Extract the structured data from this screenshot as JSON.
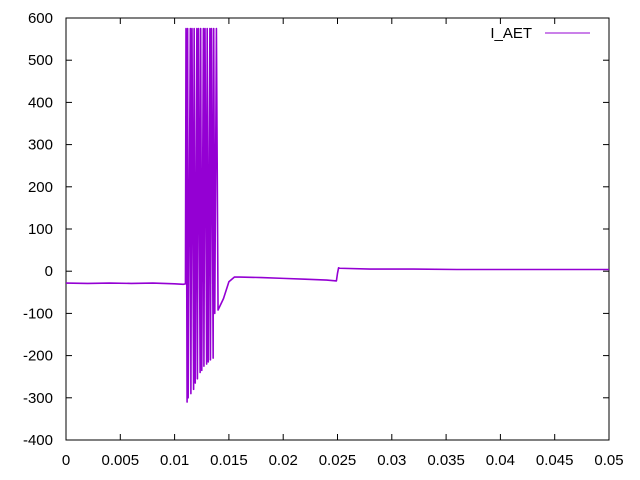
{
  "chart_data": {
    "type": "line",
    "title": "",
    "xlabel": "",
    "ylabel": "",
    "xlim": [
      0,
      0.05
    ],
    "ylim": [
      -400,
      600
    ],
    "xticks": [
      0,
      0.005,
      0.01,
      0.015,
      0.02,
      0.025,
      0.03,
      0.035,
      0.04,
      0.045,
      0.05
    ],
    "xtick_labels": [
      "0",
      "0.005",
      "0.01",
      "0.015",
      "0.02",
      "0.025",
      "0.03",
      "0.035",
      "0.04",
      "0.045",
      "0.05"
    ],
    "yticks": [
      -400,
      -300,
      -200,
      -100,
      0,
      100,
      200,
      300,
      400,
      500,
      600
    ],
    "ytick_labels": [
      "-400",
      "-300",
      "-200",
      "-100",
      "0",
      "100",
      "200",
      "300",
      "400",
      "500",
      "600"
    ],
    "grid": false,
    "legend_position": "top-right",
    "series": [
      {
        "name": "I_AET",
        "color": "#9400d3",
        "x": [
          0,
          0.002,
          0.004,
          0.006,
          0.008,
          0.01,
          0.0108,
          0.011,
          0.01105,
          0.01115,
          0.0112,
          0.01125,
          0.01145,
          0.0115,
          0.0116,
          0.01175,
          0.0118,
          0.0119,
          0.01205,
          0.0121,
          0.0122,
          0.01235,
          0.0124,
          0.0125,
          0.01265,
          0.0127,
          0.0128,
          0.01295,
          0.013,
          0.0131,
          0.01325,
          0.0133,
          0.0134,
          0.01355,
          0.0136,
          0.0137,
          0.01385,
          0.014,
          0.0145,
          0.015,
          0.0155,
          0.016,
          0.018,
          0.02,
          0.022,
          0.024,
          0.0249,
          0.025,
          0.0251,
          0.0252,
          0.028,
          0.032,
          0.036,
          0.04,
          0.044,
          0.048,
          0.05
        ],
        "y": [
          -28,
          -29,
          -28,
          -29,
          -28,
          -30,
          -31,
          -30,
          575,
          -310,
          575,
          -300,
          575,
          -290,
          575,
          -280,
          575,
          -265,
          575,
          -255,
          575,
          -240,
          575,
          -235,
          575,
          -225,
          575,
          -220,
          575,
          -215,
          575,
          -210,
          575,
          -206,
          575,
          -100,
          575,
          -92,
          -65,
          -25,
          -14,
          -14,
          -15,
          -17,
          -19,
          -21,
          -23,
          -5,
          8,
          7,
          5,
          5,
          4,
          4,
          4,
          4,
          4
        ]
      }
    ]
  }
}
